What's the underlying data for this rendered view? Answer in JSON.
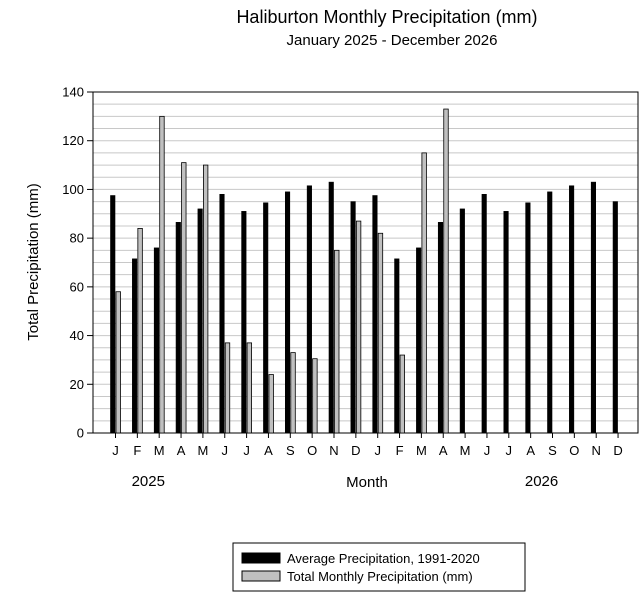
{
  "chart_data": {
    "type": "bar",
    "title": "Haliburton Monthly Precipitation (mm)",
    "subtitle": "January 2025 - December 2026",
    "xlabel": "Month",
    "ylabel": "Total Precipitation (mm)",
    "ylim": [
      0,
      140
    ],
    "yticks": [
      0,
      20,
      40,
      60,
      80,
      100,
      120,
      140
    ],
    "grid": "horizontal, every 5 mm",
    "categories": [
      "J",
      "F",
      "M",
      "A",
      "M",
      "J",
      "J",
      "A",
      "S",
      "O",
      "N",
      "D",
      "J",
      "F",
      "M",
      "A",
      "M",
      "J",
      "J",
      "A",
      "S",
      "O",
      "N",
      "D"
    ],
    "year_labels": [
      {
        "label": "2025",
        "month_index": 1.5
      },
      {
        "label": "2026",
        "month_index": 19.5
      }
    ],
    "series": [
      {
        "name": "Average Precipitation, 1991-2020",
        "color": "#000000",
        "values": [
          97.5,
          71.5,
          76,
          86.5,
          92,
          98,
          91,
          94.5,
          99,
          101.5,
          103,
          95,
          97.5,
          71.5,
          76,
          86.5,
          92,
          98,
          91,
          94.5,
          99,
          101.5,
          103,
          95
        ]
      },
      {
        "name": "Total Monthly Precipitation (mm)",
        "color": "#c0c0c0",
        "values": [
          58,
          84,
          130,
          111,
          110,
          37,
          37,
          24,
          33,
          30.5,
          75,
          87,
          82,
          32,
          115,
          133,
          null,
          null,
          null,
          null,
          null,
          null,
          null,
          null
        ]
      }
    ],
    "legend_position": "bottom-center"
  }
}
